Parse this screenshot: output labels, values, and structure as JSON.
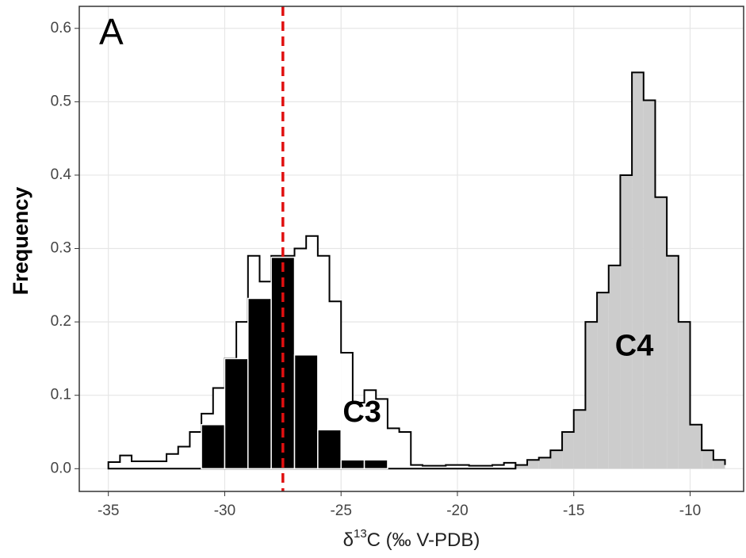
{
  "chart_data": {
    "type": "histogram",
    "panel_label": "A",
    "ylabel": "Frequency",
    "xlabel": {
      "prefix": "δ",
      "sup": "13",
      "suffix": "C (‰ V-PDB)"
    },
    "annotations": [
      {
        "text": "C3",
        "x": -24.1,
        "y": 0.075
      },
      {
        "text": "C4",
        "x": -12.4,
        "y": 0.165
      }
    ],
    "xlim": [
      -36.25,
      -7.7
    ],
    "ylim": [
      -0.031,
      0.63
    ],
    "xticks": [
      -35,
      -30,
      -25,
      -20,
      -15,
      -10
    ],
    "yticks": [
      {
        "value": 0,
        "label": "0.0"
      },
      0.1,
      0.2,
      0.3,
      0.4,
      0.5,
      0.6
    ],
    "grid": true,
    "vline": {
      "x": -27.5,
      "color": "#e01010"
    },
    "series": [
      {
        "color": "#ffffff",
        "edge": "#000000",
        "bins": [
          -35,
          -34.5,
          -34,
          -33.5,
          -33,
          -32.5,
          -32,
          -31.5,
          -31,
          -30.5,
          -30,
          -29.5,
          -29,
          -28.5,
          -28,
          -27.5,
          -27,
          -26.5,
          -26,
          -25.5,
          -25,
          -24.5,
          -24,
          -23.5,
          -23,
          -22.5,
          -22,
          -21.5,
          -21,
          -20.5,
          -20,
          -19.5,
          -19,
          -18.5,
          -18,
          -17.5
        ],
        "values": [
          0.009,
          0.018,
          0.01,
          0.01,
          0.01,
          0.02,
          0.03,
          0.05,
          0.075,
          0.11,
          0.15,
          0.2,
          0.29,
          0.255,
          0.29,
          0.29,
          0.3,
          0.317,
          0.29,
          0.228,
          0.158,
          0.09,
          0.107,
          0.095,
          0.055,
          0.05,
          0.005,
          0.004,
          0.004,
          0.005,
          0.005,
          0.004,
          0.004,
          0.005,
          0.008
        ]
      },
      {
        "color": "#cccccc",
        "edge": "#000000",
        "bins": [
          -17.5,
          -17,
          -16.5,
          -16,
          -15.5,
          -15,
          -14.5,
          -14,
          -13.5,
          -13,
          -12.5,
          -12,
          -11.5,
          -11,
          -10.5,
          -10,
          -9.5,
          -9,
          -8.5
        ],
        "values": [
          0.005,
          0.012,
          0.015,
          0.025,
          0.05,
          0.08,
          0.2,
          0.24,
          0.277,
          0.4,
          0.54,
          0.502,
          0.37,
          0.29,
          0.2,
          0.06,
          0.025,
          0.012,
          0.005
        ]
      },
      {
        "color": "#000000",
        "edge": "#ffffff",
        "bins": [
          -31,
          -30,
          -29,
          -28,
          -27,
          -26,
          -25,
          -24,
          -23
        ],
        "values": [
          0.06,
          0.15,
          0.232,
          0.288,
          0.155,
          0.053,
          0.012,
          0.012
        ]
      }
    ]
  }
}
